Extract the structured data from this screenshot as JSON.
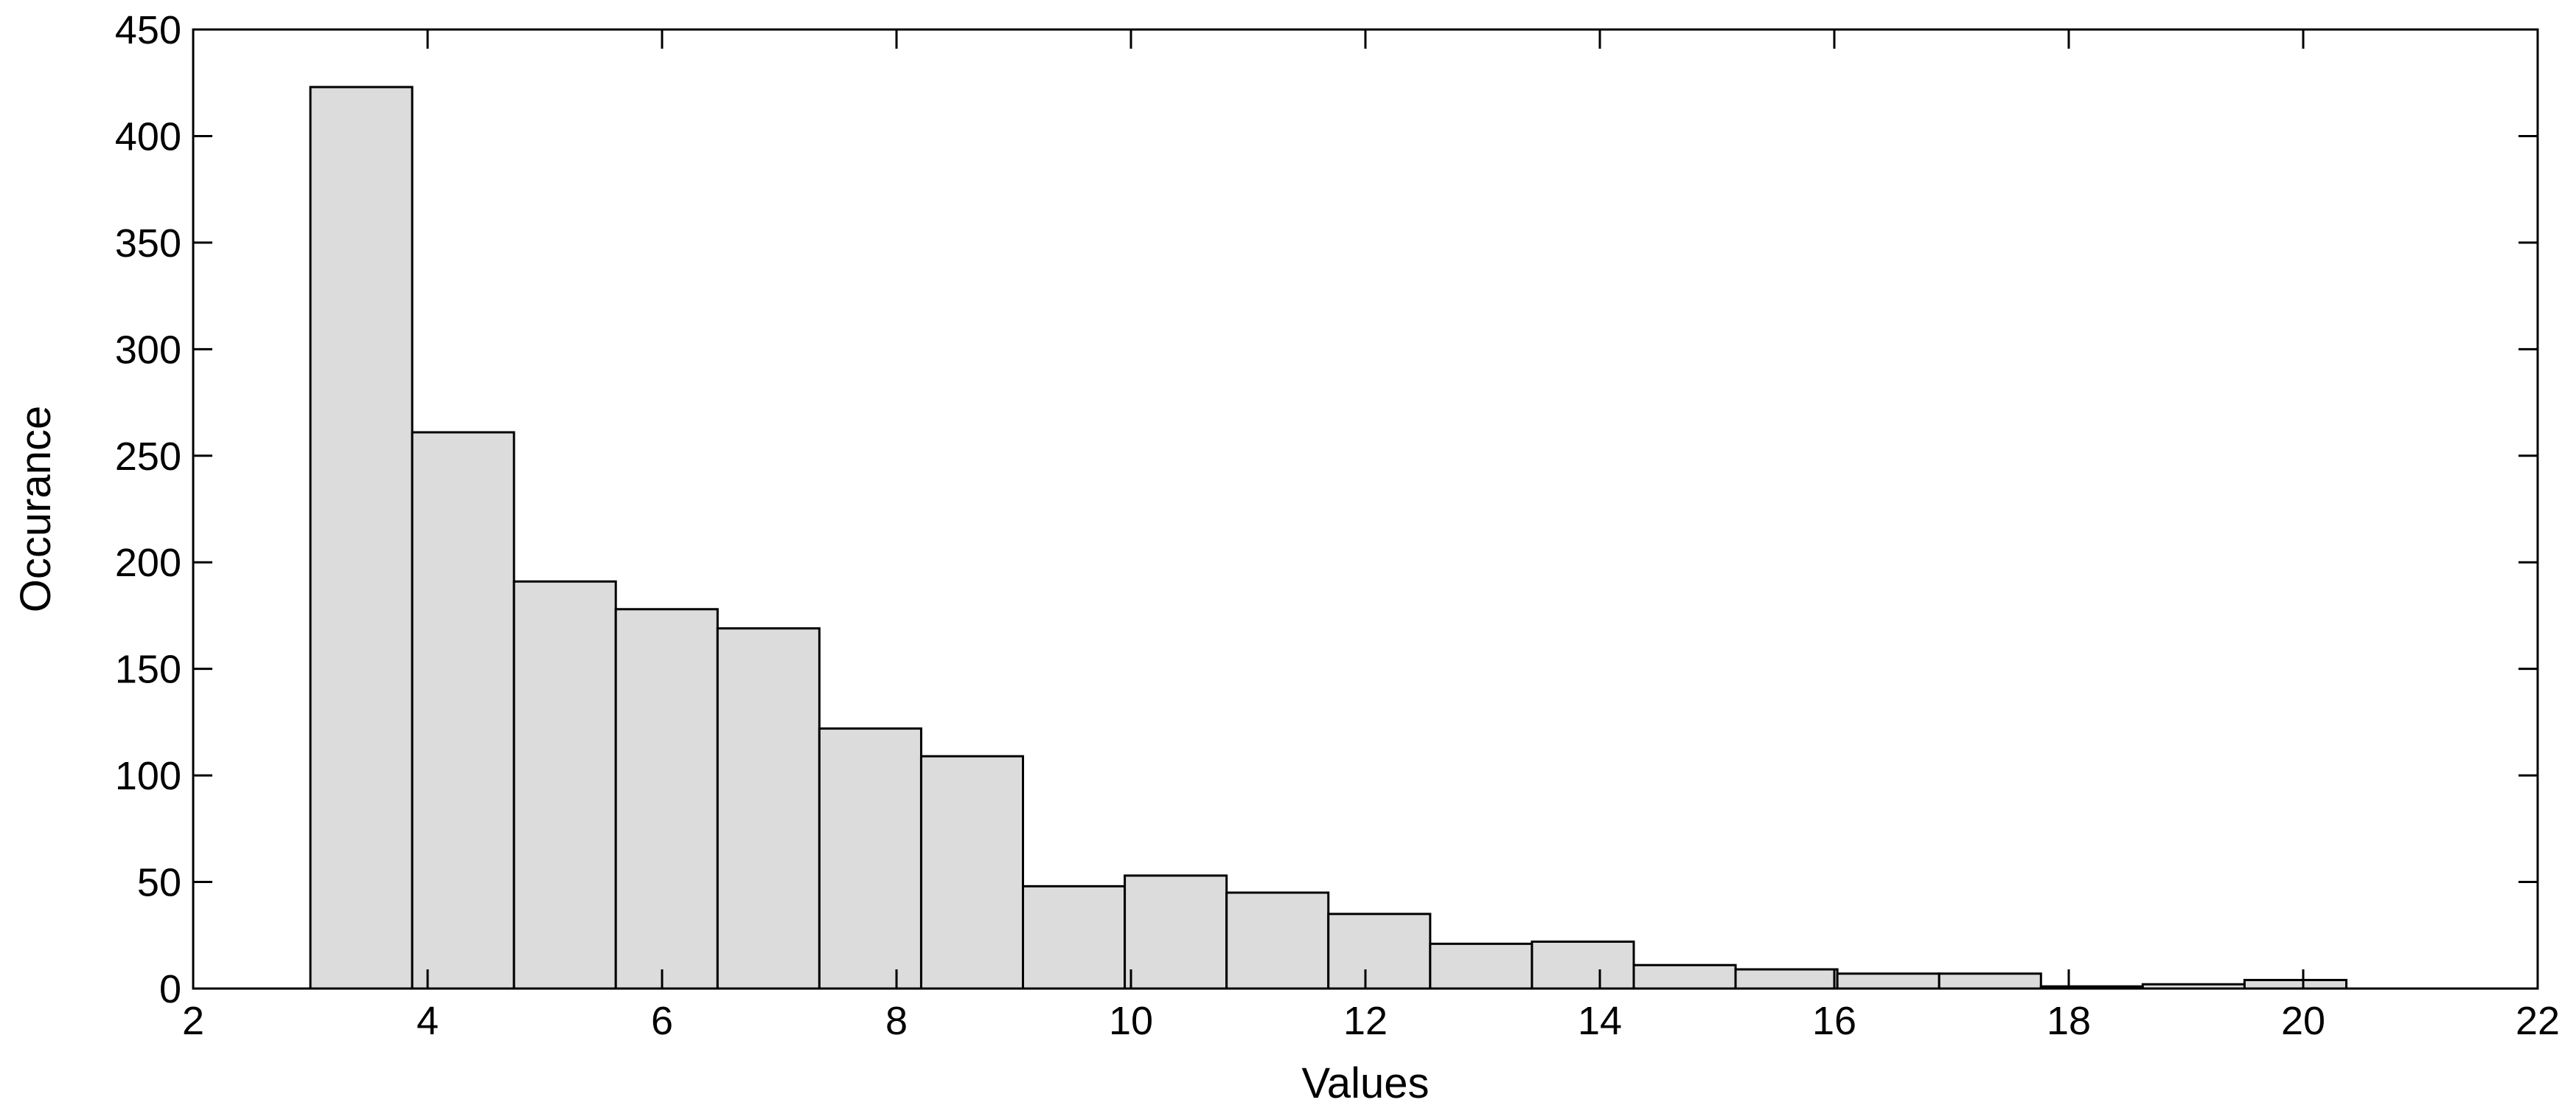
{
  "chart_data": {
    "type": "bar",
    "subtype": "histogram",
    "title": "",
    "xlabel": "Values",
    "ylabel": "Occurance",
    "xlim": [
      2,
      22
    ],
    "ylim": [
      0,
      450
    ],
    "xticks": [
      2,
      4,
      6,
      8,
      10,
      12,
      14,
      16,
      18,
      20,
      22
    ],
    "yticks": [
      0,
      50,
      100,
      150,
      200,
      250,
      300,
      350,
      400,
      450
    ],
    "grid": false,
    "legend": "none",
    "bin_start": 3.0,
    "bin_width": 0.8684,
    "values": [
      423,
      261,
      191,
      178,
      169,
      122,
      109,
      48,
      53,
      45,
      35,
      21,
      22,
      11,
      9,
      7,
      7,
      1,
      2,
      4
    ],
    "bar_fill": "#dcdcdc",
    "bar_edge": "#000000"
  }
}
